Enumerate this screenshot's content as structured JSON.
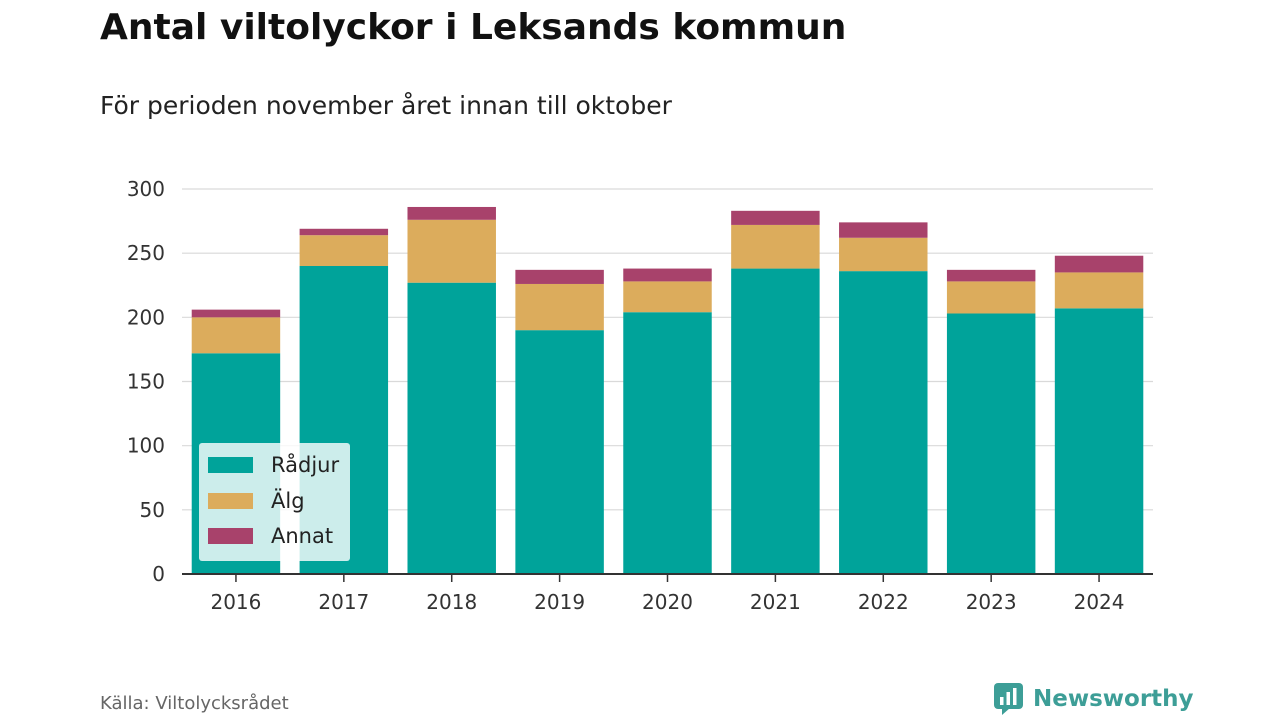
{
  "title": "Antal viltolyckor i Leksands kommun",
  "subtitle": "För perioden november året innan till oktober",
  "source": "Källa: Viltolycksrådet",
  "brand": {
    "name": "Newsworthy",
    "icon": "newsworthy-logo-icon",
    "color": "#3d9e97"
  },
  "chart_data": {
    "type": "bar",
    "stacked": true,
    "categories": [
      "2016",
      "2017",
      "2018",
      "2019",
      "2020",
      "2021",
      "2022",
      "2023",
      "2024"
    ],
    "series": [
      {
        "name": "Rådjur",
        "color": "#00a39a",
        "values": [
          172,
          240,
          227,
          190,
          204,
          238,
          236,
          203,
          207
        ]
      },
      {
        "name": "Älg",
        "color": "#dcac5c",
        "values": [
          28,
          24,
          49,
          36,
          24,
          34,
          26,
          25,
          28
        ]
      },
      {
        "name": "Annat",
        "color": "#a8426b",
        "values": [
          6,
          5,
          10,
          11,
          10,
          11,
          12,
          9,
          13
        ]
      }
    ],
    "ylim": [
      0,
      300
    ],
    "yticks": [
      0,
      50,
      100,
      150,
      200,
      250,
      300
    ],
    "grid": true,
    "legend": "bottom-left"
  }
}
